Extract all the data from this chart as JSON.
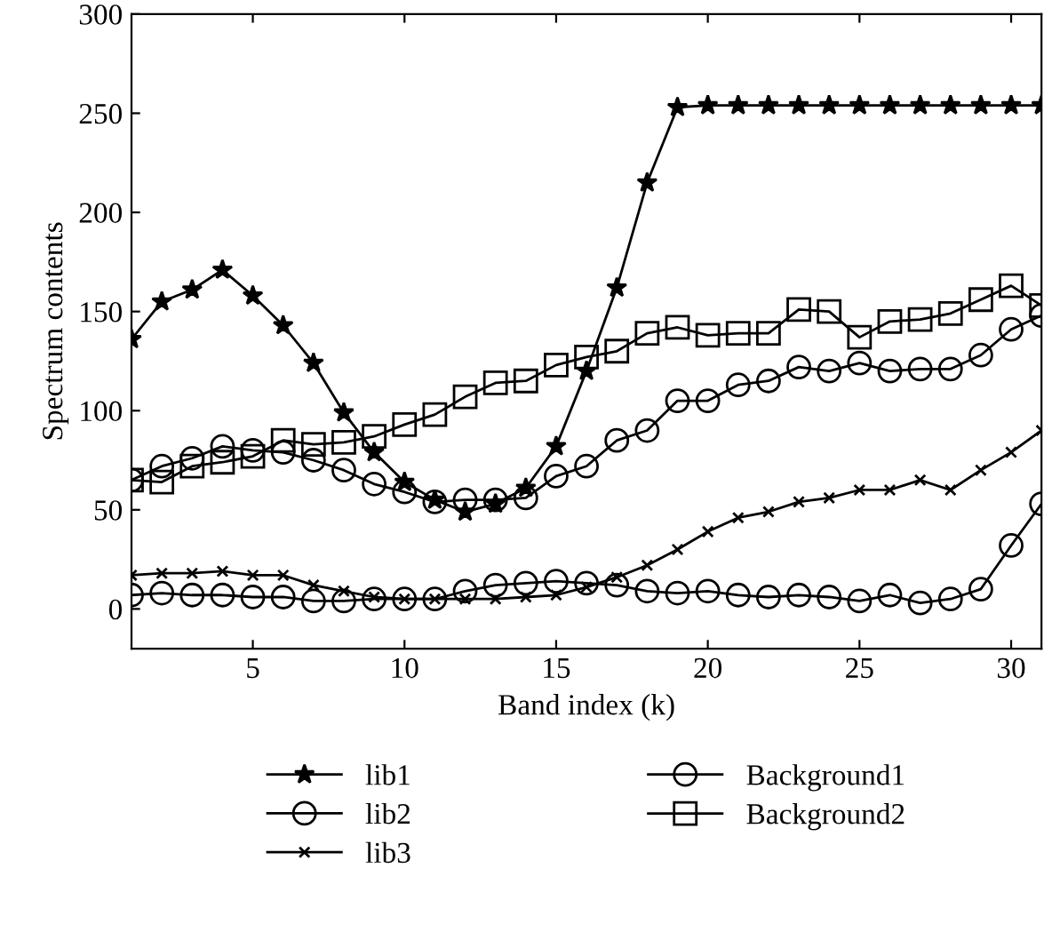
{
  "chart_data": {
    "type": "line",
    "xlabel": "Band index (k)",
    "ylabel": "Spectrum contents",
    "x": [
      1,
      2,
      3,
      4,
      5,
      6,
      7,
      8,
      9,
      10,
      11,
      12,
      13,
      14,
      15,
      16,
      17,
      18,
      19,
      20,
      21,
      22,
      23,
      24,
      25,
      26,
      27,
      28,
      29,
      30,
      31
    ],
    "xlim": [
      1,
      31
    ],
    "ylim": [
      -20,
      300
    ],
    "xticks": [
      5,
      10,
      15,
      20,
      25,
      30
    ],
    "yticks": [
      0,
      50,
      100,
      150,
      200,
      250,
      300
    ],
    "grid": false,
    "legend": "bottom",
    "line_style": "solid",
    "series": [
      {
        "name": "lib1",
        "color": "#000000",
        "marker": "star",
        "values": [
          136,
          155,
          161,
          171,
          158,
          143,
          124,
          99,
          79,
          64,
          55,
          49,
          53,
          61,
          82,
          120,
          162,
          215,
          253,
          254,
          254,
          254,
          254,
          254,
          254,
          254,
          254,
          254,
          254,
          254,
          254
        ]
      },
      {
        "name": "lib2",
        "color": "#000000",
        "marker": "circle",
        "values": [
          65,
          72,
          76,
          82,
          80,
          79,
          75,
          70,
          63,
          59,
          54,
          55,
          55,
          56,
          67,
          72,
          85,
          90,
          105,
          105,
          113,
          115,
          122,
          120,
          124,
          120,
          121,
          121,
          128,
          141,
          148
        ]
      },
      {
        "name": "lib3",
        "color": "#000000",
        "marker": "cross",
        "values": [
          17,
          18,
          18,
          19,
          17,
          17,
          12,
          9,
          6,
          5,
          5,
          5,
          5,
          6,
          7,
          11,
          16,
          22,
          30,
          39,
          46,
          49,
          54,
          56,
          60,
          60,
          65,
          60,
          70,
          79,
          90
        ]
      },
      {
        "name": "Background1",
        "color": "#000000",
        "marker": "circle",
        "values": [
          7,
          8,
          7,
          7,
          6,
          6,
          4,
          4,
          5,
          5,
          5,
          9,
          12,
          13,
          14,
          13,
          12,
          9,
          8,
          9,
          7,
          6,
          7,
          6,
          4,
          7,
          3,
          5,
          10,
          32,
          53
        ]
      },
      {
        "name": "Background2",
        "color": "#000000",
        "marker": "square",
        "values": [
          65,
          64,
          72,
          74,
          77,
          85,
          83,
          84,
          87,
          93,
          98,
          107,
          114,
          115,
          123,
          127,
          130,
          139,
          142,
          138,
          139,
          139,
          151,
          150,
          137,
          145,
          146,
          149,
          156,
          163,
          153
        ]
      }
    ]
  }
}
